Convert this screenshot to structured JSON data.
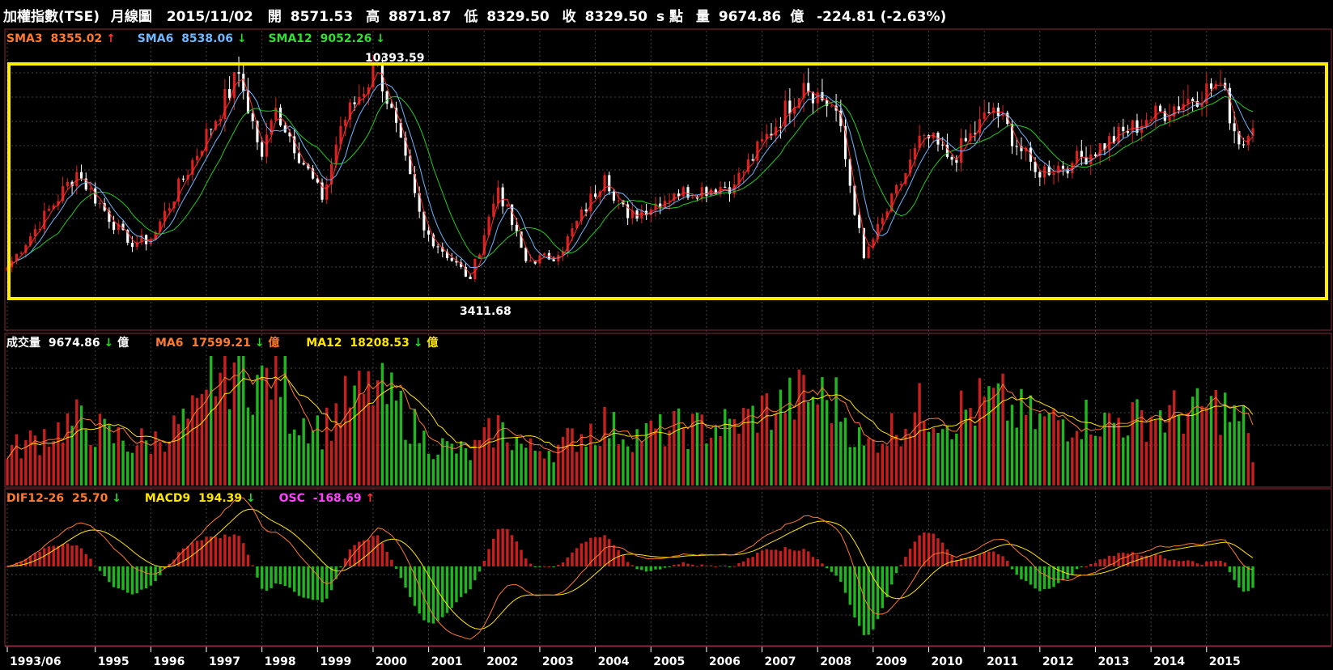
{
  "header": {
    "title": "加權指數(TSE)",
    "period": "月線圖",
    "date": "2015/11/02",
    "open_label": "開",
    "open": "8571.53",
    "high_label": "高",
    "high": "8871.87",
    "low_label": "低",
    "low": "8329.50",
    "close_label": "收",
    "close": "8329.50",
    "unit_label": "s 點",
    "volume_label": "量",
    "volume": "9674.86",
    "volume_unit": "億",
    "change": "-224.81 (-2.63%)"
  },
  "price_panel": {
    "sma3_label": "SMA3",
    "sma3_value": "8355.02",
    "sma6_label": "SMA6",
    "sma6_value": "8538.06",
    "sma12_label": "SMA12",
    "sma12_value": "9052.26",
    "max_label": "10393.59",
    "min_label": "3411.68",
    "arrows": {
      "sma3": "↑",
      "sma6": "↓",
      "sma12": "↓"
    }
  },
  "volume_panel": {
    "vol_label": "成交量",
    "vol_value": "9674.86",
    "vol_unit": "億",
    "ma6_label": "MA6",
    "ma6_value": "17599.21",
    "ma6_unit": "億",
    "ma12_label": "MA12",
    "ma12_value": "18208.53",
    "ma12_unit": "億",
    "arrows": {
      "vol": "↓",
      "ma6": "↓",
      "ma12": "↓"
    }
  },
  "macd_panel": {
    "dif_label": "DIF12-26",
    "dif_value": "25.70",
    "macd_label": "MACD9",
    "macd_value": "194.39",
    "osc_label": "OSC",
    "osc_value": "-168.69",
    "arrows": {
      "dif": "↓",
      "macd": "↓",
      "osc": "↑"
    }
  },
  "x_axis": {
    "ticks": [
      "1993/06",
      "1995",
      "1996",
      "1997",
      "1998",
      "1999",
      "2000",
      "2001",
      "2002",
      "2003",
      "2004",
      "2005",
      "2006",
      "2007",
      "2008",
      "2009",
      "2010",
      "2011",
      "2012",
      "2013",
      "2014",
      "2015"
    ]
  },
  "colors": {
    "up": "#e02020",
    "down": "#ffffff",
    "vol_up": "#c81e1e",
    "vol_down": "#21b521",
    "sma3": "#ff3030",
    "sma6": "#6fb7ff",
    "sma12": "#22cc22",
    "ma6": "#ff7a2e",
    "ma12": "#ffe600",
    "dif": "#ff7a2e",
    "macd": "#ffe600",
    "osc": "#ff40ff",
    "highlight": "#ffee00",
    "arrow_up": "#ff3030",
    "arrow_down": "#22dd22"
  },
  "chart_data": {
    "type": "candlestick",
    "title": "加權指數(TSE) 月線圖",
    "x_range": [
      "1993/06",
      "2015/11"
    ],
    "y_range": [
      3411.68,
      10393.59
    ],
    "anchors": [
      {
        "date": "1993/06",
        "close": 3800
      },
      {
        "date": "1994/09",
        "close": 6900
      },
      {
        "date": "1995/08",
        "close": 4600
      },
      {
        "date": "1996/01",
        "close": 4700
      },
      {
        "date": "1997/08",
        "close": 10100
      },
      {
        "date": "1998/01",
        "close": 7400
      },
      {
        "date": "1998/04",
        "close": 9000
      },
      {
        "date": "1999/02",
        "close": 6000
      },
      {
        "date": "1999/06",
        "close": 8400
      },
      {
        "date": "2000/02",
        "close": 10393.59
      },
      {
        "date": "2000/12",
        "close": 5000
      },
      {
        "date": "2001/10",
        "close": 3411.68
      },
      {
        "date": "2002/04",
        "close": 6400
      },
      {
        "date": "2002/10",
        "close": 4000
      },
      {
        "date": "2003/05",
        "close": 4200
      },
      {
        "date": "2004/03",
        "close": 6800
      },
      {
        "date": "2004/08",
        "close": 5400
      },
      {
        "date": "2005/06",
        "close": 6200
      },
      {
        "date": "2006/07",
        "close": 6500
      },
      {
        "date": "2007/10",
        "close": 9800
      },
      {
        "date": "2008/05",
        "close": 8900
      },
      {
        "date": "2008/11",
        "close": 4100
      },
      {
        "date": "2009/12",
        "close": 8100
      },
      {
        "date": "2010/06",
        "close": 7300
      },
      {
        "date": "2011/03",
        "close": 9000
      },
      {
        "date": "2011/12",
        "close": 6900
      },
      {
        "date": "2012/08",
        "close": 7200
      },
      {
        "date": "2013/12",
        "close": 8600
      },
      {
        "date": "2015/04",
        "close": 9800
      },
      {
        "date": "2015/08",
        "close": 7800
      },
      {
        "date": "2015/11",
        "close": 8329.5
      }
    ],
    "series": [
      {
        "name": "SMA3",
        "last": 8355.02
      },
      {
        "name": "SMA6",
        "last": 8538.06
      },
      {
        "name": "SMA12",
        "last": 9052.26
      }
    ],
    "volume_series": [
      {
        "name": "成交量",
        "last": 9674.86
      },
      {
        "name": "MA6",
        "last": 17599.21
      },
      {
        "name": "MA12",
        "last": 18208.53
      }
    ],
    "macd_series": [
      {
        "name": "DIF12-26",
        "last": 25.7
      },
      {
        "name": "MACD9",
        "last": 194.39
      },
      {
        "name": "OSC",
        "last": -168.69
      }
    ]
  }
}
